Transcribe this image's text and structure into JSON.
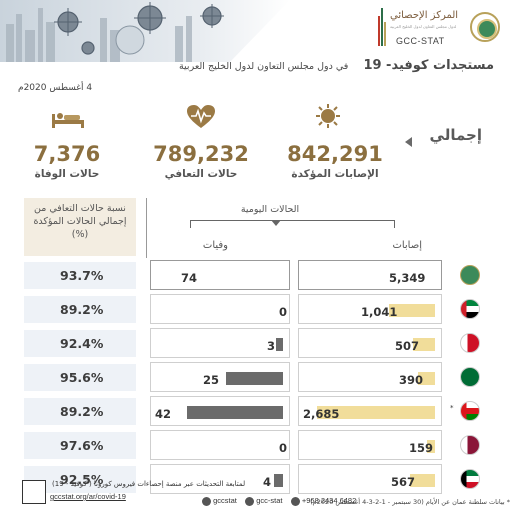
{
  "header": {
    "org_arabic": "المركز الإحصائي",
    "org_arabic_sub": "لدول مجلس التعاون لدول الخليج العربية",
    "org_english": "GCC-STAT",
    "title": "مستجدات كوفيد- 19",
    "subtitle": "في دول مجلس التعاون لدول الخليج العربية",
    "date": "4 أغسطس 2020م"
  },
  "summary": {
    "total_label": "إجمالي",
    "confirmed": {
      "value": "842,291",
      "label": "الإصابات المؤكدة",
      "icon": "virus-icon"
    },
    "recovered": {
      "value": "789,232",
      "label": "حالات التعافي",
      "icon": "heartbeat-icon"
    },
    "deaths": {
      "value": "7,376",
      "label": "حالات الوفاة",
      "icon": "bed-patient-icon"
    }
  },
  "table": {
    "recovery_header": "نسبة حالات التعافي من إجمالي الحالات المؤكدة (%)",
    "daily_header": "الحالات اليومية",
    "col_cases": "إصابات",
    "col_deaths": "وفيات",
    "rows": [
      {
        "country": "GCC",
        "flag": "gcc-emblem-icon",
        "cases": "5,349",
        "cases_value": 5349,
        "deaths": "74",
        "deaths_value": 74,
        "recovery": "93.7%",
        "star": ""
      },
      {
        "country": "UAE",
        "flag": "uae-flag-icon",
        "cases": "1,041",
        "cases_value": 1041,
        "deaths": "0",
        "deaths_value": 0,
        "recovery": "89.2%",
        "star": ""
      },
      {
        "country": "Bahrain",
        "flag": "bahrain-flag-icon",
        "cases": "507",
        "cases_value": 507,
        "deaths": "3",
        "deaths_value": 3,
        "recovery": "92.4%",
        "star": ""
      },
      {
        "country": "Saudi Arabia",
        "flag": "saudi-flag-icon",
        "cases": "390",
        "cases_value": 390,
        "deaths": "25",
        "deaths_value": 25,
        "recovery": "95.6%",
        "star": ""
      },
      {
        "country": "Oman",
        "flag": "oman-flag-icon",
        "cases": "2,685",
        "cases_value": 2685,
        "deaths": "42",
        "deaths_value": 42,
        "recovery": "89.2%",
        "star": "*"
      },
      {
        "country": "Qatar",
        "flag": "qatar-flag-icon",
        "cases": "159",
        "cases_value": 159,
        "deaths": "0",
        "deaths_value": 0,
        "recovery": "97.6%",
        "star": ""
      },
      {
        "country": "Kuwait",
        "flag": "kuwait-flag-icon",
        "cases": "567",
        "cases_value": 567,
        "deaths": "4",
        "deaths_value": 4,
        "recovery": "92.5%",
        "star": ""
      }
    ]
  },
  "footer": {
    "note": "* بيانات سلطنة عمان عن الأيام (30 سبتمبر - 1-2-3-4 أغسطس 2020م)",
    "follow_text": "لمتابعة التحديثات عبر منصة إحصاءات فيروس كورونا ( كوفيد - 19)",
    "link": "gccstat.org/ar/covid-19",
    "social": [
      "gccstat",
      "gcc-stat",
      "+968 2434 6482"
    ]
  },
  "colors": {
    "accent_gold": "#8b6f3f",
    "case_bar": "#f1dd9a",
    "death_bar": "#6b6b6b",
    "pct_cell": "#eef2f7"
  }
}
